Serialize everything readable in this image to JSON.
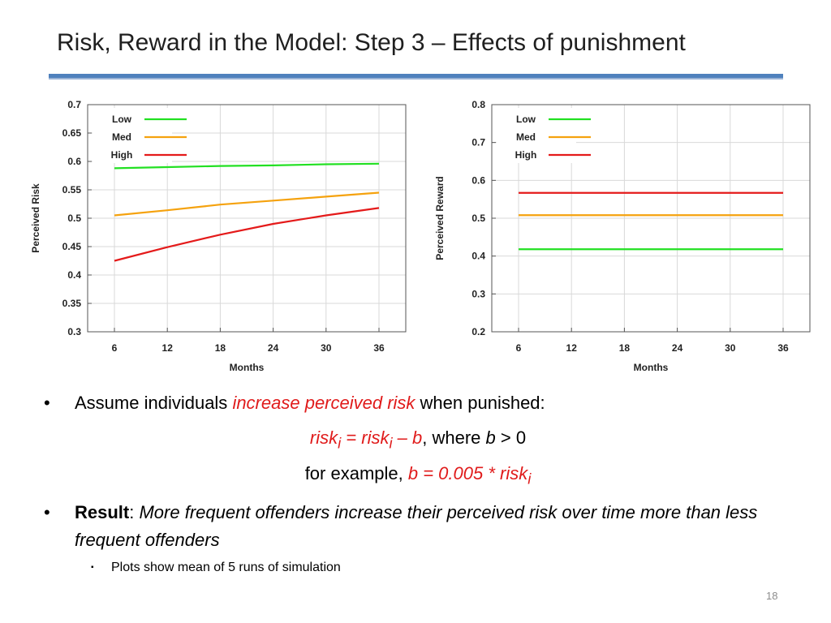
{
  "slide": {
    "title": "Risk, Reward in the Model: Step 3 – Effects of punishment",
    "page_number": "18"
  },
  "bullets": {
    "b1_pre": "Assume individuals ",
    "b1_em": "increase perceived risk",
    "b1_post": " when punished:",
    "f1_a": "risk",
    "f1_a_sub": "i",
    "f1_eq": " = risk",
    "f1_b_sub": "i",
    "f1_c": " – b",
    "f1_where": ", where ",
    "f1_b": "b",
    "f1_gt": " > 0",
    "f2_pre": "for example, ",
    "f2_expr": "b = 0.005 * risk",
    "f2_sub": "i",
    "b2_bold": "Result",
    "b2_colon": ": ",
    "b2_text": "More frequent offenders increase their perceived risk over time more than less frequent offenders",
    "sub_text": "Plots show mean of 5 runs of simulation",
    "bullet_glyph": "•",
    "sub_glyph": "▪"
  },
  "chart_data": [
    {
      "type": "line",
      "xlabel": "Months",
      "ylabel": "Perceived Risk",
      "xlim": [
        6,
        36
      ],
      "ylim": [
        0.3,
        0.7
      ],
      "xticks": [
        6,
        12,
        18,
        24,
        30,
        36
      ],
      "xtick_labels": [
        "6",
        "12",
        "18",
        "24",
        "30",
        "36"
      ],
      "yticks": [
        0.3,
        0.35,
        0.4,
        0.45,
        0.5,
        0.55,
        0.6,
        0.65,
        0.7
      ],
      "ytick_labels": [
        "0.3",
        "0.35",
        "0.4",
        "0.45",
        "0.5",
        "0.55",
        "0.6",
        "0.65",
        "0.7"
      ],
      "grid": true,
      "legend": "top-left",
      "x": [
        6,
        12,
        18,
        24,
        30,
        36
      ],
      "series": [
        {
          "name": "Low",
          "color": "#22e022",
          "values": [
            0.588,
            0.59,
            0.592,
            0.593,
            0.595,
            0.596
          ]
        },
        {
          "name": "Med",
          "color": "#f5a20e",
          "values": [
            0.505,
            0.514,
            0.524,
            0.531,
            0.538,
            0.545
          ]
        },
        {
          "name": "High",
          "color": "#e41a1a",
          "values": [
            0.425,
            0.449,
            0.471,
            0.49,
            0.505,
            0.518
          ]
        }
      ]
    },
    {
      "type": "line",
      "xlabel": "Months",
      "ylabel": "Perceived Reward",
      "xlim": [
        6,
        36
      ],
      "ylim": [
        0.2,
        0.8
      ],
      "xticks": [
        6,
        12,
        18,
        24,
        30,
        36
      ],
      "xtick_labels": [
        "6",
        "12",
        "18",
        "24",
        "30",
        "36"
      ],
      "yticks": [
        0.2,
        0.3,
        0.4,
        0.5,
        0.6,
        0.7,
        0.8
      ],
      "ytick_labels": [
        "0.2",
        "0.3",
        "0.4",
        "0.5",
        "0.6",
        "0.7",
        "0.8"
      ],
      "grid": true,
      "legend": "top-left",
      "x": [
        6,
        12,
        18,
        24,
        30,
        36
      ],
      "series": [
        {
          "name": "Low",
          "color": "#22e022",
          "values": [
            0.418,
            0.418,
            0.418,
            0.418,
            0.418,
            0.418
          ]
        },
        {
          "name": "Med",
          "color": "#f5a20e",
          "values": [
            0.508,
            0.508,
            0.508,
            0.508,
            0.508,
            0.508
          ]
        },
        {
          "name": "High",
          "color": "#e41a1a",
          "values": [
            0.567,
            0.567,
            0.567,
            0.567,
            0.567,
            0.567
          ]
        }
      ]
    }
  ]
}
